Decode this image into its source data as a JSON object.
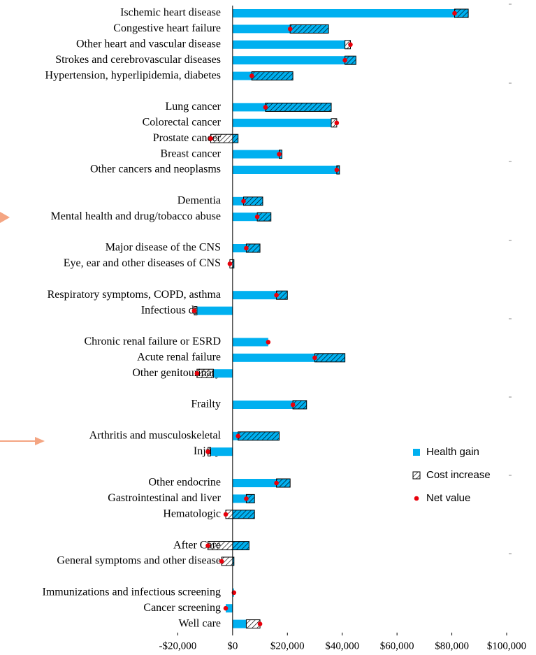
{
  "chart_data": {
    "type": "bar",
    "categories": [
      "Ischemic heart disease",
      "Congestive heart failure",
      "Other heart and vascular disease",
      "Strokes and cerebrovascular diseases",
      "Hypertension, hyperlipidemia, diabetes",
      null,
      "Lung cancer",
      "Colorectal cancer",
      "Prostate cancer",
      "Breast cancer",
      "Other cancers and neoplasms",
      null,
      "Dementia",
      "Mental health and drug/tobacco abuse",
      null,
      "Major disease of the CNS",
      "Eye, ear and other diseases of CNS",
      null,
      "Respiratory symptoms, COPD, asthma",
      "Infectious disease",
      null,
      "Chronic renal failure or ESRD",
      "Acute renal failure",
      "Other genitourinary",
      null,
      "Frailty",
      null,
      "Arthritis and musculoskeletal",
      "Injury",
      null,
      "Other endocrine",
      "Gastrointestinal and liver",
      "Hematologic",
      null,
      "After Care",
      "General symptoms and other disease",
      null,
      "Immunizations and infectious screening",
      "Cancer screening",
      "Well care"
    ],
    "series": [
      {
        "name": "Health gain",
        "color": "#00b0f0",
        "values": [
          86000,
          35000,
          41000,
          45000,
          22000,
          null,
          36000,
          36000,
          2000,
          18000,
          39000,
          null,
          11000,
          14000,
          null,
          10000,
          500,
          null,
          20000,
          -13000,
          null,
          13000,
          41000,
          -7000,
          null,
          27000,
          null,
          17000,
          -8000,
          null,
          21000,
          8000,
          8000,
          null,
          6000,
          500,
          null,
          500,
          -2500,
          5000
        ]
      },
      {
        "name": "Cost increase",
        "color": "#000000",
        "values": [
          5000,
          14000,
          -2000,
          4000,
          15000,
          null,
          24000,
          -2000,
          10000,
          1000,
          1000,
          null,
          7000,
          5000,
          null,
          5000,
          1500,
          null,
          4000,
          1000,
          null,
          0,
          11000,
          6000,
          null,
          5000,
          null,
          15000,
          1000,
          null,
          5000,
          3000,
          10500,
          null,
          15000,
          4500,
          null,
          0,
          0,
          -5000
        ]
      },
      {
        "name": "Net value",
        "color": "#e8000b",
        "values": [
          81000,
          21000,
          43000,
          41000,
          7000,
          null,
          12000,
          38000,
          -8000,
          17000,
          38000,
          null,
          4000,
          9000,
          null,
          5000,
          -1000,
          null,
          16000,
          -14000,
          null,
          13000,
          30000,
          -13000,
          null,
          22000,
          null,
          2000,
          -9000,
          null,
          16000,
          5000,
          -2500,
          null,
          -9000,
          -4000,
          null,
          500,
          -2500,
          10000
        ]
      }
    ],
    "xlim": [
      -20000,
      100000
    ],
    "xticks": [
      {
        "value": -20000,
        "label": "-$20,000"
      },
      {
        "value": 0,
        "label": "$0"
      },
      {
        "value": 20000,
        "label": "$20,000"
      },
      {
        "value": 40000,
        "label": "$40,000"
      },
      {
        "value": 60000,
        "label": "$60,000"
      },
      {
        "value": 80000,
        "label": "$80,000"
      },
      {
        "value": 100000,
        "label": "$100,000"
      }
    ],
    "legend": "right"
  }
}
